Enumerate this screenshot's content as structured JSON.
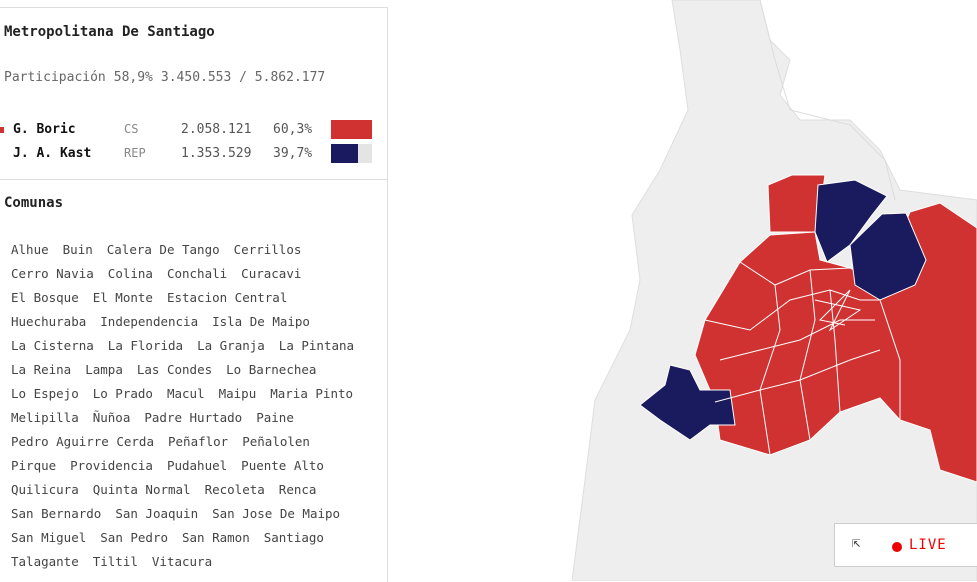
{
  "panel": {
    "title": "Metropolitana De Santiago",
    "participation": {
      "label": "Participación",
      "percent": "58,9%",
      "votes": "3.450.553 / 5.862.177"
    },
    "candidates": [
      {
        "name": "G. Boric",
        "party": "CS",
        "votes": "2.058.121",
        "share": {
          "value": 60.3,
          "label": "60,3%"
        },
        "color": "#d03232"
      },
      {
        "name": "J. A. Kast",
        "party": "REP",
        "votes": "1.353.529",
        "share": {
          "value": 39.7,
          "label": "39,7%"
        },
        "color": "#1a1a5e"
      }
    ],
    "comunas_title": "Comunas",
    "comunas": [
      "Alhue",
      "Buin",
      "Calera De Tango",
      "Cerrillos",
      "Cerro Navia",
      "Colina",
      "Conchali",
      "Curacavi",
      "El Bosque",
      "El Monte",
      "Estacion Central",
      "Huechuraba",
      "Independencia",
      "Isla De Maipo",
      "La Cisterna",
      "La Florida",
      "La Granja",
      "La Pintana",
      "La Reina",
      "Lampa",
      "Las Condes",
      "Lo Barnechea",
      "Lo Espejo",
      "Lo Prado",
      "Macul",
      "Maipu",
      "Maria Pinto",
      "Melipilla",
      "Ñuñoa",
      "Padre Hurtado",
      "Paine",
      "Pedro Aguirre Cerda",
      "Peñaflor",
      "Peñalolen",
      "Pirque",
      "Providencia",
      "Pudahuel",
      "Puente Alto",
      "Quilicura",
      "Quinta Normal",
      "Recoleta",
      "Renca",
      "San Bernardo",
      "San Joaquin",
      "San Jose De Maipo",
      "San Miguel",
      "San Pedro",
      "San Ramon",
      "Santiago",
      "Talagante",
      "Tiltil",
      "Vitacura"
    ]
  },
  "live": {
    "label": "LIVE"
  }
}
